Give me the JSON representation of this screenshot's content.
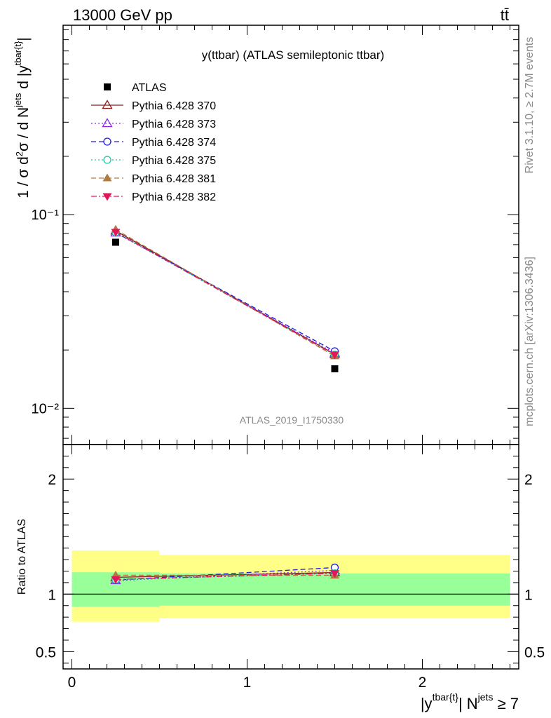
{
  "header": {
    "energy_label": "13000 GeV pp",
    "process_label": "tt̄"
  },
  "side_labels": {
    "rivet": "Rivet 3.1.10, ≥ 2.7M events",
    "site": "mcplots.cern.ch [arXiv:1306.3436]"
  },
  "analysis_id": "ATLAS_2019_I1750330",
  "chart_data": [
    {
      "type": "line",
      "panel": "main",
      "title": "y(ttbar) (ATLAS semileptonic ttbar)",
      "ylabel": "1 / σ d²σ / d N^jets d |y^tbar{t}|",
      "yscale": "log",
      "ylim": [
        0.0065,
        0.95
      ],
      "xlim": [
        -0.05,
        2.55
      ],
      "y_ticks": [
        {
          "value": 0.1,
          "label": "10⁻¹"
        },
        {
          "value": 0.01,
          "label": "10⁻²"
        }
      ],
      "legend_position": "top-left",
      "x": [
        0.25,
        1.5
      ],
      "series": [
        {
          "name": "ATLAS",
          "values": [
            0.072,
            0.016
          ],
          "color": "#000000",
          "marker": "square",
          "dash": "none"
        },
        {
          "name": "Pythia 6.428 370",
          "values": [
            0.0825,
            0.019
          ],
          "color": "#8b1a1a",
          "marker": "triangle-open",
          "dash": "solid"
        },
        {
          "name": "Pythia 6.428 373",
          "values": [
            0.0805,
            0.0193
          ],
          "color": "#8a2be2",
          "marker": "triangle-open",
          "dash": "dotted"
        },
        {
          "name": "Pythia 6.428 374",
          "values": [
            0.0808,
            0.0197
          ],
          "color": "#1f1fdf",
          "marker": "circle-open",
          "dash": "dashed"
        },
        {
          "name": "Pythia 6.428 375",
          "values": [
            0.081,
            0.0189
          ],
          "color": "#20c6a8",
          "marker": "circle-open",
          "dash": "dotted"
        },
        {
          "name": "Pythia 6.428 381",
          "values": [
            0.0838,
            0.0186
          ],
          "color": "#b07a40",
          "marker": "triangle-filled",
          "dash": "dashed"
        },
        {
          "name": "Pythia 6.428 382",
          "values": [
            0.0812,
            0.0189
          ],
          "color": "#e0185a",
          "marker": "triangle-down-filled",
          "dash": "dashdot"
        }
      ]
    },
    {
      "type": "line",
      "panel": "ratio",
      "ylabel": "Ratio to ATLAS",
      "xlabel": "|y^tbar{t}| N^jets ≥ 7",
      "ylim": [
        0.35,
        2.3
      ],
      "xlim": [
        -0.05,
        2.55
      ],
      "y_ticks": [
        {
          "value": 0.5,
          "label": "0.5"
        },
        {
          "value": 1,
          "label": "1"
        },
        {
          "value": 2,
          "label": "2"
        }
      ],
      "x_ticks": [
        {
          "value": 0,
          "label": "0"
        },
        {
          "value": 1,
          "label": "1"
        },
        {
          "value": 2,
          "label": "2"
        }
      ],
      "bands": [
        {
          "x0": 0,
          "x1": 0.5,
          "yellow": [
            0.76,
            1.38
          ],
          "green": [
            0.89,
            1.19
          ]
        },
        {
          "x0": 0.5,
          "x1": 2.5,
          "yellow": [
            0.79,
            1.34
          ],
          "green": [
            0.9,
            1.18
          ]
        }
      ],
      "x": [
        0.25,
        1.5
      ],
      "series": [
        {
          "name": "Pythia 6.428 370",
          "values": [
            1.146,
            1.188
          ]
        },
        {
          "name": "Pythia 6.428 373",
          "values": [
            1.118,
            1.206
          ]
        },
        {
          "name": "Pythia 6.428 374",
          "values": [
            1.122,
            1.231
          ]
        },
        {
          "name": "Pythia 6.428 375",
          "values": [
            1.125,
            1.181
          ]
        },
        {
          "name": "Pythia 6.428 381",
          "values": [
            1.164,
            1.163
          ]
        },
        {
          "name": "Pythia 6.428 382",
          "values": [
            1.128,
            1.181
          ]
        }
      ]
    }
  ]
}
